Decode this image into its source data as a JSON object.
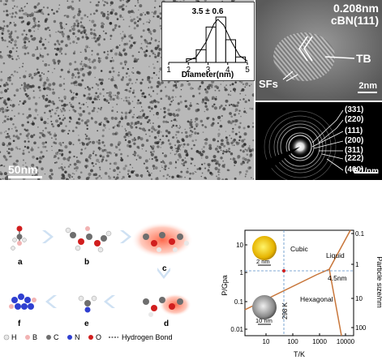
{
  "tem_main": {
    "scale_bar": "50nm",
    "histogram": {
      "type": "bar",
      "title": "3.5 ± 0.6",
      "xlabel": "Diameter(nm)",
      "ticks": [
        "1",
        "2",
        "3",
        "4",
        "5"
      ],
      "xlim": [
        1,
        5
      ],
      "bins": [
        {
          "x0": 1.9,
          "x1": 2.4,
          "h": 0.08
        },
        {
          "x0": 2.4,
          "x1": 2.9,
          "h": 0.28
        },
        {
          "x0": 2.9,
          "x1": 3.4,
          "h": 0.78
        },
        {
          "x0": 3.4,
          "x1": 3.9,
          "h": 1.0
        },
        {
          "x0": 3.9,
          "x1": 4.4,
          "h": 0.5
        },
        {
          "x0": 4.4,
          "x1": 4.9,
          "h": 0.12
        }
      ],
      "fit": [
        [
          1.9,
          0.02
        ],
        [
          2.4,
          0.12
        ],
        [
          2.9,
          0.45
        ],
        [
          3.3,
          0.85
        ],
        [
          3.5,
          0.95
        ],
        [
          3.8,
          0.82
        ],
        [
          4.2,
          0.45
        ],
        [
          4.6,
          0.15
        ],
        [
          5.0,
          0.03
        ]
      ]
    }
  },
  "hrtem": {
    "title_line1": "0.208nm",
    "title_line2": "cBN(111)",
    "tb": "TB",
    "sfs": "SFs",
    "scale": "2nm"
  },
  "saed": {
    "rings": [
      "(331)",
      "(220)",
      "(111)",
      "(200)",
      "(311)",
      "(222)",
      "(400)"
    ],
    "scale": "5 1/nm"
  },
  "scheme": {
    "steps": [
      "a",
      "b",
      "c",
      "d",
      "e",
      "f"
    ],
    "legend": [
      "H",
      "B",
      "C",
      "N",
      "O"
    ],
    "legend_hbond": "Hydrogen Bond",
    "colors": {
      "H": "#e8e8e8",
      "B": "#f2b3b3",
      "C": "#6e6e6e",
      "N": "#2f3fd0",
      "O": "#d11e1e"
    }
  },
  "phase": {
    "ylabel": "P/Gpa",
    "xlabel": "T/K",
    "y2label": "Particle size/nm",
    "yticks": [
      "0.01",
      "0.1",
      "1",
      "10"
    ],
    "xticks": [
      "10",
      "100",
      "1000",
      "10000"
    ],
    "y2ticks": [
      "0.1",
      "1",
      "10",
      "100"
    ],
    "regions": {
      "cubic": "Cubic",
      "liquid": "Liquid",
      "hexagonal": "Hexagonal"
    },
    "annot_4p5": "4.5nm",
    "annot_298": "298 K",
    "inset_top": "2 nm",
    "inset_bottom": "10 nm",
    "xlim": [
      1,
      10000
    ],
    "ylim": [
      0.01,
      30
    ]
  }
}
